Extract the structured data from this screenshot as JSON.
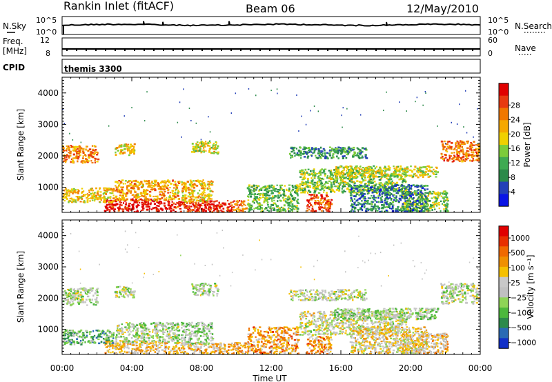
{
  "header": {
    "station": "Rankin Inlet (fitACF)",
    "beam": "Beam 06",
    "date": "12/May/2010"
  },
  "noise_panel": {
    "left_label": "N.Sky",
    "right_label": "N.Search",
    "ticks": [
      "10^5",
      "10^0"
    ]
  },
  "freq_panel": {
    "left_label_1": "Freq.",
    "left_label_2": "[MHz]",
    "right_label": "Nave",
    "left_ticks": [
      "12",
      "8"
    ],
    "right_ticks": [
      "60",
      "0"
    ]
  },
  "cpid": {
    "label": "CPID",
    "value": "themis 3300"
  },
  "chart_data": [
    {
      "type": "heatmap",
      "name": "power",
      "xlabel": "Time UT",
      "ylabel": "Slant Range [km]",
      "xlim": [
        0,
        24
      ],
      "ylim": [
        200,
        4500
      ],
      "x_ticks": [
        "00:00",
        "04:00",
        "08:00",
        "12:00",
        "16:00",
        "20:00",
        "00:00"
      ],
      "y_ticks": [
        1000,
        2000,
        3000,
        4000
      ],
      "colorbar": {
        "title": "Power [dB]",
        "labels": [
          "4",
          "8",
          "12",
          "16",
          "20",
          "24",
          "28"
        ],
        "colors": [
          "#0a14e6",
          "#2440b8",
          "#2c8a4a",
          "#3faa52",
          "#7ccc3a",
          "#f0d000",
          "#f5a800",
          "#f07800",
          "#e83a10",
          "#e00000"
        ]
      },
      "regions": [
        {
          "t": [
            0.0,
            2.1
          ],
          "r": [
            1750,
            2350
          ],
          "level": 0.72
        },
        {
          "t": [
            2.4,
            5.8
          ],
          "r": [
            200,
            650
          ],
          "level": 0.97
        },
        {
          "t": [
            5.8,
            9.4
          ],
          "r": [
            200,
            600
          ],
          "level": 0.9
        },
        {
          "t": [
            9.4,
            10.6
          ],
          "r": [
            200,
            600
          ],
          "level": 0.78
        },
        {
          "t": [
            0.0,
            3.0
          ],
          "r": [
            500,
            1000
          ],
          "level": 0.6
        },
        {
          "t": [
            3.0,
            6.8
          ],
          "r": [
            550,
            1250
          ],
          "level": 0.66
        },
        {
          "t": [
            6.8,
            8.7
          ],
          "r": [
            500,
            1250
          ],
          "level": 0.62
        },
        {
          "t": [
            7.4,
            9.0
          ],
          "r": [
            2050,
            2500
          ],
          "level": 0.55
        },
        {
          "t": [
            3.0,
            4.2
          ],
          "r": [
            2000,
            2400
          ],
          "level": 0.6
        },
        {
          "t": [
            10.6,
            13.6
          ],
          "r": [
            200,
            1100
          ],
          "level": 0.38
        },
        {
          "t": [
            14.0,
            15.5
          ],
          "r": [
            200,
            800
          ],
          "level": 0.84
        },
        {
          "t": [
            13.6,
            19.8
          ],
          "r": [
            800,
            1600
          ],
          "level": 0.44
        },
        {
          "t": [
            15.6,
            21.6
          ],
          "r": [
            1300,
            1700
          ],
          "level": 0.52
        },
        {
          "t": [
            13.0,
            17.5
          ],
          "r": [
            1900,
            2300
          ],
          "level": 0.3
        },
        {
          "t": [
            19.4,
            22.2
          ],
          "r": [
            200,
            900
          ],
          "level": 0.46
        },
        {
          "t": [
            21.7,
            24.0
          ],
          "r": [
            1800,
            2500
          ],
          "level": 0.76
        },
        {
          "t": [
            16.5,
            21.0
          ],
          "r": [
            200,
            1100
          ],
          "level": 0.25
        }
      ]
    },
    {
      "type": "heatmap",
      "name": "velocity",
      "xlabel": "Time UT",
      "ylabel": "Slant Range [km]",
      "xlim": [
        0,
        24
      ],
      "ylim": [
        200,
        4500
      ],
      "x_ticks": [
        "00:00",
        "04:00",
        "08:00",
        "12:00",
        "16:00",
        "20:00",
        "00:00"
      ],
      "y_ticks": [
        1000,
        2000,
        3000,
        4000
      ],
      "colorbar": {
        "title": "Velocity [m s⁻¹]",
        "labels": [
          "1000",
          "500",
          "100",
          "25",
          "−25",
          "−100",
          "−500",
          "−1000"
        ],
        "colors": [
          "#1230c8",
          "#2a6ab4",
          "#2c8a4a",
          "#4cb83c",
          "#8ed456",
          "#c0c0c0",
          "#c8c8c8",
          "#f5c000",
          "#f09000",
          "#f06a00",
          "#e83000",
          "#e00000"
        ]
      },
      "regions": [
        {
          "t": [
            0.0,
            2.1
          ],
          "r": [
            1750,
            2350
          ],
          "level": 0.45
        },
        {
          "t": [
            2.4,
            5.8
          ],
          "r": [
            200,
            650
          ],
          "level": 0.6
        },
        {
          "t": [
            5.8,
            9.4
          ],
          "r": [
            200,
            600
          ],
          "level": 0.62
        },
        {
          "t": [
            9.4,
            10.6
          ],
          "r": [
            200,
            600
          ],
          "level": 0.66
        },
        {
          "t": [
            0.0,
            3.0
          ],
          "r": [
            500,
            1000
          ],
          "level": 0.3
        },
        {
          "t": [
            3.0,
            6.8
          ],
          "r": [
            550,
            1250
          ],
          "level": 0.45
        },
        {
          "t": [
            6.8,
            8.7
          ],
          "r": [
            500,
            1250
          ],
          "level": 0.4
        },
        {
          "t": [
            7.4,
            9.0
          ],
          "r": [
            2050,
            2500
          ],
          "level": 0.45
        },
        {
          "t": [
            3.0,
            4.2
          ],
          "r": [
            2000,
            2400
          ],
          "level": 0.45
        },
        {
          "t": [
            10.6,
            13.6
          ],
          "r": [
            200,
            1100
          ],
          "level": 0.68
        },
        {
          "t": [
            14.0,
            15.5
          ],
          "r": [
            200,
            800
          ],
          "level": 0.7
        },
        {
          "t": [
            13.6,
            19.8
          ],
          "r": [
            800,
            1600
          ],
          "level": 0.5
        },
        {
          "t": [
            15.6,
            21.6
          ],
          "r": [
            1300,
            1700
          ],
          "level": 0.42
        },
        {
          "t": [
            13.0,
            17.5
          ],
          "r": [
            1900,
            2300
          ],
          "level": 0.47
        },
        {
          "t": [
            19.4,
            22.2
          ],
          "r": [
            200,
            900
          ],
          "level": 0.6
        },
        {
          "t": [
            21.7,
            24.0
          ],
          "r": [
            1800,
            2500
          ],
          "level": 0.46
        },
        {
          "t": [
            16.5,
            21.0
          ],
          "r": [
            200,
            1100
          ],
          "level": 0.55
        }
      ]
    }
  ]
}
